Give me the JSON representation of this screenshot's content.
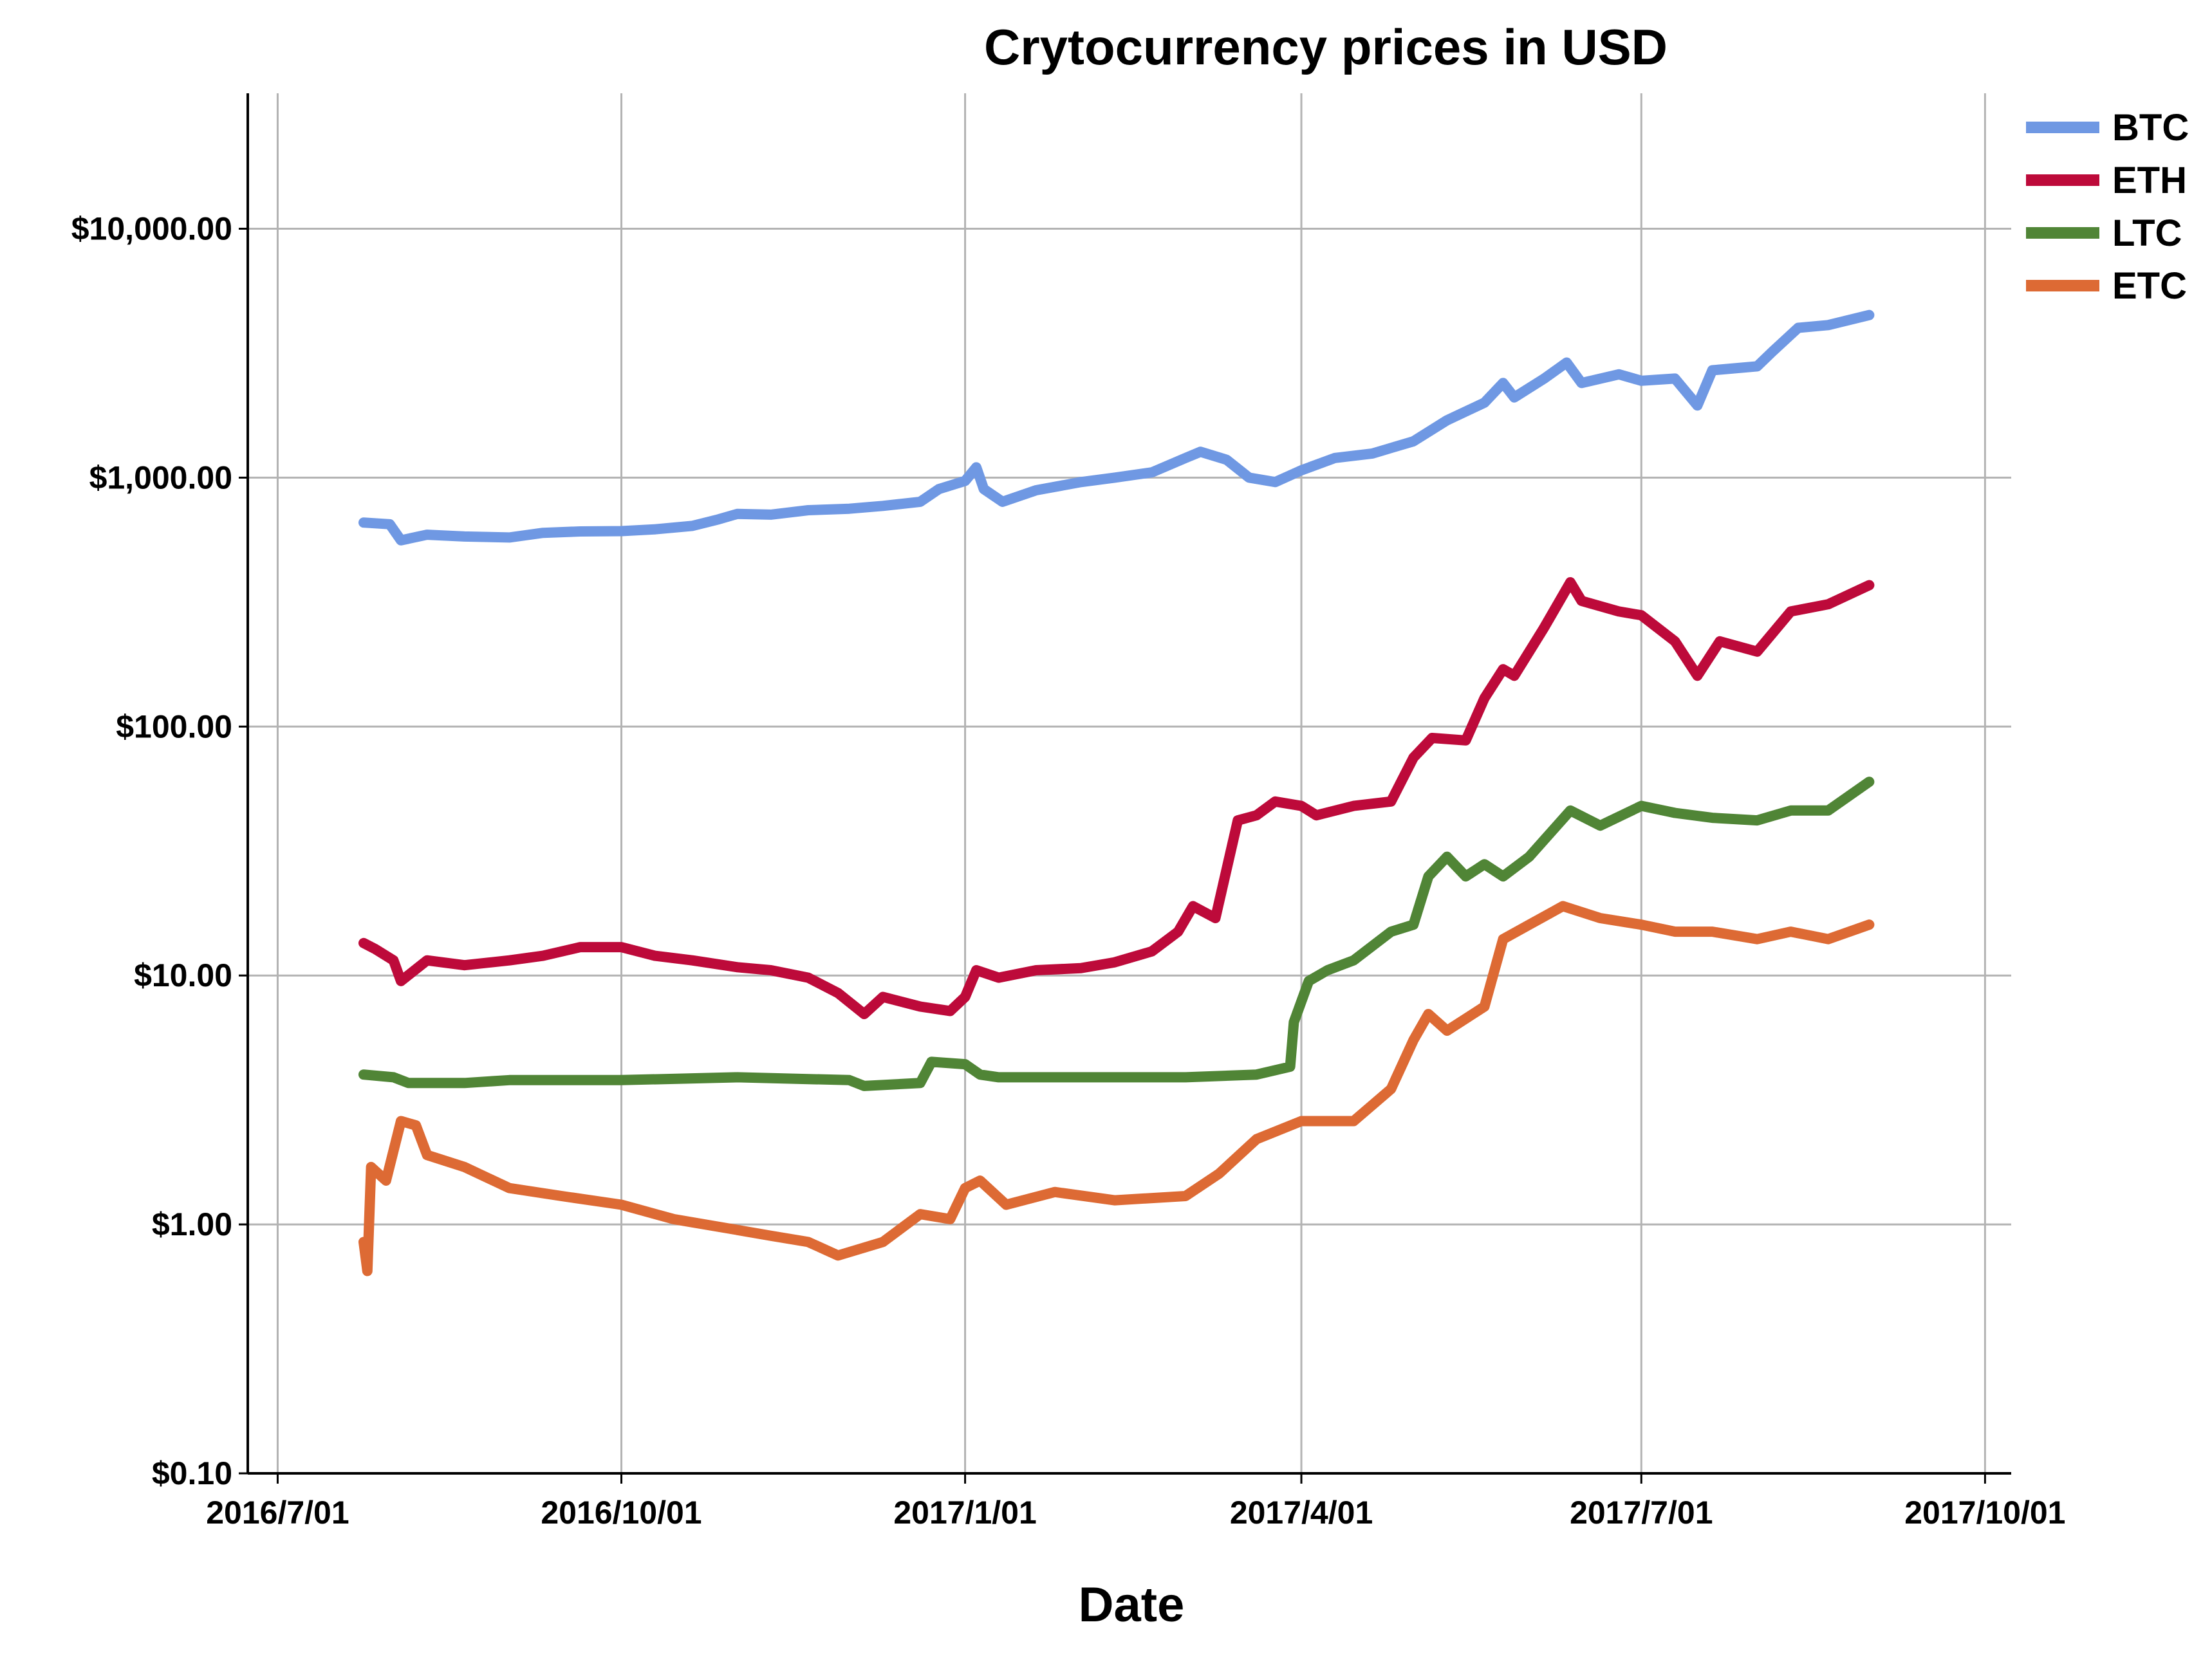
{
  "chart_data": {
    "type": "line",
    "title": "Crytocurrency prices in USD",
    "xlabel": "Date",
    "ylabel": "",
    "y_scale": "log",
    "ylim": [
      0.1,
      35000
    ],
    "xlim": [
      "2016-06-23",
      "2017-10-08"
    ],
    "grid": true,
    "legend_position": "top-right",
    "x_ticks": [
      "2016-07-01",
      "2016-10-01",
      "2017-01-01",
      "2017-04-01",
      "2017-07-01",
      "2017-10-01"
    ],
    "x_tick_labels": [
      "2016/7/01",
      "2016/10/01",
      "2017/1/01",
      "2017/4/01",
      "2017/7/01",
      "2017/10/01"
    ],
    "y_ticks": [
      0.1,
      1,
      10,
      100,
      1000,
      10000
    ],
    "y_tick_labels": [
      "$0.10",
      "$1.00",
      "$10.00",
      "$100.00",
      "$1,000.00",
      "$10,000.00"
    ],
    "series": [
      {
        "name": "BTC",
        "color": "#6f98e3",
        "points": [
          [
            "2016-07-24",
            660
          ],
          [
            "2016-07-31",
            650
          ],
          [
            "2016-08-03",
            560
          ],
          [
            "2016-08-10",
            590
          ],
          [
            "2016-08-20",
            580
          ],
          [
            "2016-09-01",
            575
          ],
          [
            "2016-09-10",
            600
          ],
          [
            "2016-09-20",
            608
          ],
          [
            "2016-10-01",
            610
          ],
          [
            "2016-10-10",
            620
          ],
          [
            "2016-10-20",
            640
          ],
          [
            "2016-10-27",
            680
          ],
          [
            "2016-11-01",
            715
          ],
          [
            "2016-11-10",
            710
          ],
          [
            "2016-11-20",
            740
          ],
          [
            "2016-12-01",
            750
          ],
          [
            "2016-12-10",
            770
          ],
          [
            "2016-12-20",
            800
          ],
          [
            "2016-12-25",
            900
          ],
          [
            "2017-01-01",
            970
          ],
          [
            "2017-01-04",
            1100
          ],
          [
            "2017-01-06",
            900
          ],
          [
            "2017-01-11",
            800
          ],
          [
            "2017-01-20",
            890
          ],
          [
            "2017-02-01",
            960
          ],
          [
            "2017-02-10",
            1000
          ],
          [
            "2017-02-20",
            1050
          ],
          [
            "2017-03-01",
            1200
          ],
          [
            "2017-03-05",
            1270
          ],
          [
            "2017-03-12",
            1180
          ],
          [
            "2017-03-18",
            1000
          ],
          [
            "2017-03-25",
            960
          ],
          [
            "2017-04-01",
            1070
          ],
          [
            "2017-04-10",
            1200
          ],
          [
            "2017-04-20",
            1250
          ],
          [
            "2017-05-01",
            1400
          ],
          [
            "2017-05-10",
            1700
          ],
          [
            "2017-05-20",
            2000
          ],
          [
            "2017-05-25",
            2400
          ],
          [
            "2017-05-28",
            2100
          ],
          [
            "2017-06-05",
            2500
          ],
          [
            "2017-06-11",
            2900
          ],
          [
            "2017-06-15",
            2400
          ],
          [
            "2017-06-25",
            2600
          ],
          [
            "2017-07-01",
            2450
          ],
          [
            "2017-07-10",
            2500
          ],
          [
            "2017-07-16",
            1950
          ],
          [
            "2017-07-20",
            2700
          ],
          [
            "2017-08-01",
            2800
          ],
          [
            "2017-08-05",
            3200
          ],
          [
            "2017-08-12",
            4000
          ],
          [
            "2017-08-20",
            4100
          ],
          [
            "2017-08-31",
            4500
          ]
        ]
      },
      {
        "name": "ETH",
        "color": "#bd0a3a",
        "points": [
          [
            "2016-07-24",
            13.5
          ],
          [
            "2016-07-27",
            12.8
          ],
          [
            "2016-08-01",
            11.5
          ],
          [
            "2016-08-03",
            9.5
          ],
          [
            "2016-08-10",
            11.5
          ],
          [
            "2016-08-20",
            11.0
          ],
          [
            "2016-09-01",
            11.5
          ],
          [
            "2016-09-10",
            12.0
          ],
          [
            "2016-09-20",
            13.0
          ],
          [
            "2016-10-01",
            13.0
          ],
          [
            "2016-10-10",
            12.0
          ],
          [
            "2016-10-20",
            11.5
          ],
          [
            "2016-11-01",
            10.8
          ],
          [
            "2016-11-10",
            10.5
          ],
          [
            "2016-11-20",
            9.8
          ],
          [
            "2016-11-28",
            8.5
          ],
          [
            "2016-12-05",
            7.0
          ],
          [
            "2016-12-10",
            8.2
          ],
          [
            "2016-12-20",
            7.5
          ],
          [
            "2016-12-28",
            7.2
          ],
          [
            "2017-01-01",
            8.2
          ],
          [
            "2017-01-04",
            10.5
          ],
          [
            "2017-01-10",
            9.8
          ],
          [
            "2017-01-20",
            10.5
          ],
          [
            "2017-02-01",
            10.7
          ],
          [
            "2017-02-10",
            11.3
          ],
          [
            "2017-02-20",
            12.5
          ],
          [
            "2017-02-27",
            15.0
          ],
          [
            "2017-03-03",
            19.0
          ],
          [
            "2017-03-09",
            17.0
          ],
          [
            "2017-03-15",
            42.0
          ],
          [
            "2017-03-20",
            44.0
          ],
          [
            "2017-03-25",
            50.0
          ],
          [
            "2017-04-01",
            48.0
          ],
          [
            "2017-04-05",
            44.0
          ],
          [
            "2017-04-15",
            48.0
          ],
          [
            "2017-04-25",
            50.0
          ],
          [
            "2017-05-01",
            75.0
          ],
          [
            "2017-05-06",
            90.0
          ],
          [
            "2017-05-15",
            88.0
          ],
          [
            "2017-05-20",
            130.0
          ],
          [
            "2017-05-25",
            170.0
          ],
          [
            "2017-05-28",
            160.0
          ],
          [
            "2017-06-05",
            250.0
          ],
          [
            "2017-06-12",
            380.0
          ],
          [
            "2017-06-15",
            320.0
          ],
          [
            "2017-06-25",
            290.0
          ],
          [
            "2017-07-01",
            280.0
          ],
          [
            "2017-07-10",
            220.0
          ],
          [
            "2017-07-16",
            160.0
          ],
          [
            "2017-07-22",
            220.0
          ],
          [
            "2017-08-01",
            200.0
          ],
          [
            "2017-08-10",
            290.0
          ],
          [
            "2017-08-20",
            310.0
          ],
          [
            "2017-08-31",
            370.0
          ]
        ]
      },
      {
        "name": "LTC",
        "color": "#508536",
        "points": [
          [
            "2016-07-24",
            4.0
          ],
          [
            "2016-08-01",
            3.9
          ],
          [
            "2016-08-05",
            3.7
          ],
          [
            "2016-08-20",
            3.7
          ],
          [
            "2016-09-01",
            3.8
          ],
          [
            "2016-09-15",
            3.8
          ],
          [
            "2016-10-01",
            3.8
          ],
          [
            "2016-11-01",
            3.9
          ],
          [
            "2016-12-01",
            3.8
          ],
          [
            "2016-12-05",
            3.6
          ],
          [
            "2016-12-20",
            3.7
          ],
          [
            "2016-12-23",
            4.5
          ],
          [
            "2017-01-01",
            4.4
          ],
          [
            "2017-01-05",
            4.0
          ],
          [
            "2017-01-10",
            3.9
          ],
          [
            "2017-02-01",
            3.9
          ],
          [
            "2017-03-01",
            3.9
          ],
          [
            "2017-03-20",
            4.0
          ],
          [
            "2017-03-29",
            4.3
          ],
          [
            "2017-03-30",
            6.5
          ],
          [
            "2017-04-03",
            9.5
          ],
          [
            "2017-04-08",
            10.5
          ],
          [
            "2017-04-15",
            11.5
          ],
          [
            "2017-04-25",
            15.0
          ],
          [
            "2017-05-01",
            16.0
          ],
          [
            "2017-05-05",
            25.0
          ],
          [
            "2017-05-10",
            30.0
          ],
          [
            "2017-05-15",
            25.0
          ],
          [
            "2017-05-20",
            28.0
          ],
          [
            "2017-05-25",
            25.0
          ],
          [
            "2017-06-01",
            30.0
          ],
          [
            "2017-06-12",
            46.0
          ],
          [
            "2017-06-20",
            40.0
          ],
          [
            "2017-07-01",
            48.0
          ],
          [
            "2017-07-10",
            45.0
          ],
          [
            "2017-07-20",
            43.0
          ],
          [
            "2017-08-01",
            42.0
          ],
          [
            "2017-08-10",
            46.0
          ],
          [
            "2017-08-20",
            46.0
          ],
          [
            "2017-08-31",
            60.0
          ]
        ]
      },
      {
        "name": "ETC",
        "color": "#dd6a34",
        "points": [
          [
            "2016-07-24",
            0.85
          ],
          [
            "2016-07-25",
            0.65
          ],
          [
            "2016-07-26",
            1.7
          ],
          [
            "2016-07-30",
            1.5
          ],
          [
            "2016-08-03",
            2.6
          ],
          [
            "2016-08-07",
            2.5
          ],
          [
            "2016-08-10",
            1.9
          ],
          [
            "2016-08-20",
            1.7
          ],
          [
            "2016-09-01",
            1.4
          ],
          [
            "2016-09-15",
            1.3
          ],
          [
            "2016-10-01",
            1.2
          ],
          [
            "2016-10-15",
            1.05
          ],
          [
            "2016-11-01",
            0.95
          ],
          [
            "2016-11-10",
            0.9
          ],
          [
            "2016-11-20",
            0.85
          ],
          [
            "2016-11-28",
            0.75
          ],
          [
            "2016-12-10",
            0.85
          ],
          [
            "2016-12-20",
            1.1
          ],
          [
            "2016-12-28",
            1.05
          ],
          [
            "2017-01-01",
            1.4
          ],
          [
            "2017-01-05",
            1.5
          ],
          [
            "2017-01-12",
            1.2
          ],
          [
            "2017-01-25",
            1.35
          ],
          [
            "2017-02-10",
            1.25
          ],
          [
            "2017-03-01",
            1.3
          ],
          [
            "2017-03-10",
            1.6
          ],
          [
            "2017-03-20",
            2.2
          ],
          [
            "2017-04-01",
            2.6
          ],
          [
            "2017-04-15",
            2.6
          ],
          [
            "2017-04-25",
            3.5
          ],
          [
            "2017-05-01",
            5.5
          ],
          [
            "2017-05-05",
            7.0
          ],
          [
            "2017-05-10",
            6.0
          ],
          [
            "2017-05-20",
            7.5
          ],
          [
            "2017-05-25",
            14.0
          ],
          [
            "2017-06-01",
            16.0
          ],
          [
            "2017-06-10",
            19.0
          ],
          [
            "2017-06-20",
            17.0
          ],
          [
            "2017-07-01",
            16.0
          ],
          [
            "2017-07-10",
            15.0
          ],
          [
            "2017-07-20",
            15.0
          ],
          [
            "2017-08-01",
            14.0
          ],
          [
            "2017-08-10",
            15.0
          ],
          [
            "2017-08-20",
            14.0
          ],
          [
            "2017-08-31",
            16.0
          ]
        ]
      }
    ]
  }
}
